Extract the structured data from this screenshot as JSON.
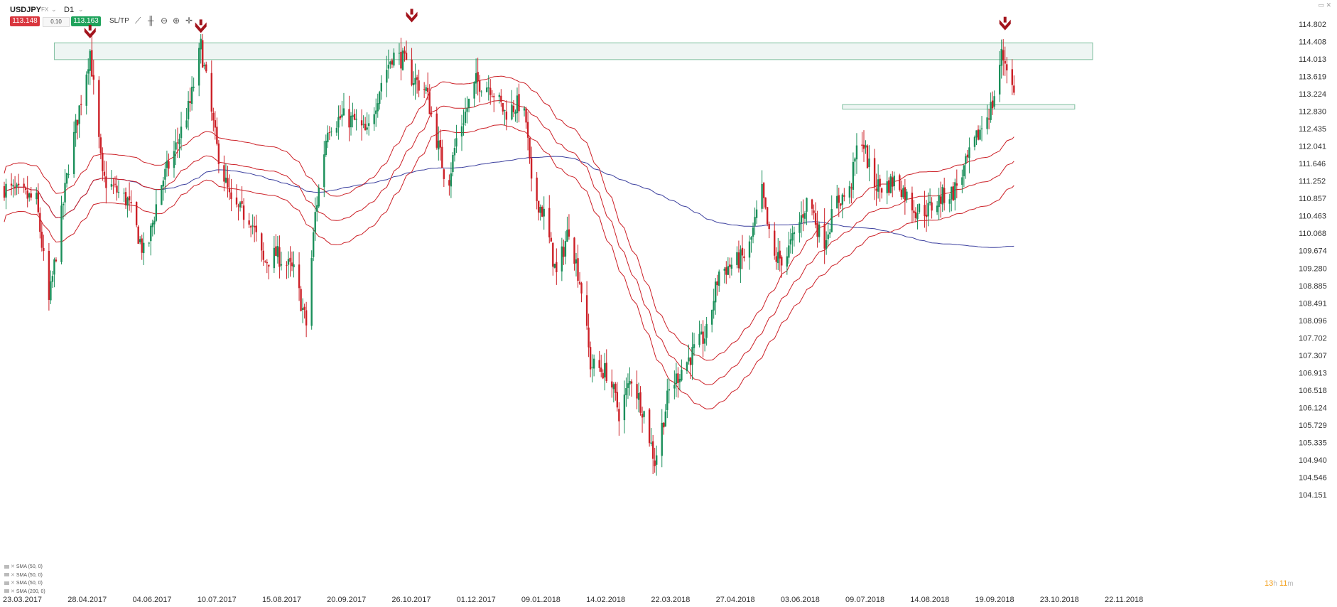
{
  "toolbar": {
    "symbol": "USDJPY",
    "market": "FX",
    "timeframe": "D1",
    "sell_price": "113.148",
    "spread": "0.10",
    "buy_price": "113.163",
    "sltp_label": "SL/TP"
  },
  "indicators": [
    "SMA (50, 0)",
    "SMA (50, 0)",
    "SMA (50, 0)",
    "SMA (200, 0)"
  ],
  "timer": {
    "hours": "13",
    "hours_unit": "h",
    "minutes": "11",
    "minutes_unit": "m"
  },
  "colors": {
    "bull": "#1a8f5a",
    "bear": "#cc2027",
    "sma": "#cc2027",
    "sma200": "#3b3f9e",
    "zone": "#7fbf9f",
    "arrow": "#a3141c"
  },
  "chart_data": {
    "type": "candlestick",
    "title": "",
    "xlabel": "",
    "ylabel": "",
    "y_ticks": [
      "114.802",
      "114.408",
      "114.013",
      "113.619",
      "113.224",
      "112.830",
      "112.435",
      "112.041",
      "111.646",
      "111.252",
      "110.857",
      "110.463",
      "110.068",
      "109.674",
      "109.280",
      "108.885",
      "108.491",
      "108.096",
      "107.702",
      "107.307",
      "106.913",
      "106.518",
      "106.124",
      "105.729",
      "105.335",
      "104.940",
      "104.546",
      "104.151"
    ],
    "ylim": [
      104.151,
      114.802
    ],
    "x_ticks": [
      "23.03.2017",
      "28.04.2017",
      "04.06.2017",
      "10.07.2017",
      "15.08.2017",
      "20.09.2017",
      "26.10.2017",
      "01.12.2017",
      "09.01.2018",
      "14.02.2018",
      "22.03.2018",
      "27.04.2018",
      "03.06.2018",
      "09.07.2018",
      "14.08.2018",
      "19.09.2018",
      "23.10.2018",
      "22.11.2018"
    ],
    "close_path": [
      [
        "2017-03-23",
        111.1
      ],
      [
        "2017-04-10",
        110.8
      ],
      [
        "2017-04-17",
        108.5
      ],
      [
        "2017-04-28",
        111.6
      ],
      [
        "2017-05-10",
        114.2
      ],
      [
        "2017-05-17",
        111.3
      ],
      [
        "2017-05-31",
        110.8
      ],
      [
        "2017-06-10",
        109.5
      ],
      [
        "2017-06-18",
        111.1
      ],
      [
        "2017-06-26",
        111.9
      ],
      [
        "2017-07-05",
        113.0
      ],
      [
        "2017-07-11",
        114.3
      ],
      [
        "2017-07-20",
        112.0
      ],
      [
        "2017-07-28",
        110.7
      ],
      [
        "2017-08-08",
        110.4
      ],
      [
        "2017-08-15",
        109.4
      ],
      [
        "2017-08-22",
        109.6
      ],
      [
        "2017-09-01",
        109.2
      ],
      [
        "2017-09-08",
        108.0
      ],
      [
        "2017-09-13",
        110.5
      ],
      [
        "2017-09-20",
        112.5
      ],
      [
        "2017-09-28",
        112.7
      ],
      [
        "2017-10-05",
        112.6
      ],
      [
        "2017-10-12",
        112.3
      ],
      [
        "2017-10-20",
        113.5
      ],
      [
        "2017-10-26",
        114.1
      ],
      [
        "2017-11-01",
        114.0
      ],
      [
        "2017-11-06",
        113.6
      ],
      [
        "2017-11-14",
        113.3
      ],
      [
        "2017-11-20",
        112.2
      ],
      [
        "2017-11-26",
        111.1
      ],
      [
        "2017-12-01",
        112.2
      ],
      [
        "2017-12-12",
        113.5
      ],
      [
        "2017-12-20",
        113.4
      ],
      [
        "2017-12-28",
        112.8
      ],
      [
        "2018-01-05",
        113.0
      ],
      [
        "2018-01-09",
        112.6
      ],
      [
        "2018-01-12",
        111.1
      ],
      [
        "2018-01-19",
        110.5
      ],
      [
        "2018-01-26",
        109.1
      ],
      [
        "2018-02-02",
        110.2
      ],
      [
        "2018-02-09",
        108.8
      ],
      [
        "2018-02-14",
        107.1
      ],
      [
        "2018-02-24",
        106.9
      ],
      [
        "2018-03-02",
        106.0
      ],
      [
        "2018-03-09",
        106.8
      ],
      [
        "2018-03-16",
        106.0
      ],
      [
        "2018-03-22",
        104.9
      ],
      [
        "2018-03-30",
        106.5
      ],
      [
        "2018-04-06",
        107.0
      ],
      [
        "2018-04-13",
        107.4
      ],
      [
        "2018-04-20",
        107.8
      ],
      [
        "2018-04-27",
        109.2
      ],
      [
        "2018-05-06",
        109.4
      ],
      [
        "2018-05-13",
        109.6
      ],
      [
        "2018-05-21",
        111.0
      ],
      [
        "2018-05-27",
        109.5
      ],
      [
        "2018-06-03",
        109.5
      ],
      [
        "2018-06-10",
        110.2
      ],
      [
        "2018-06-16",
        110.9
      ],
      [
        "2018-06-24",
        109.8
      ],
      [
        "2018-07-02",
        110.8
      ],
      [
        "2018-07-09",
        111.0
      ],
      [
        "2018-07-15",
        112.4
      ],
      [
        "2018-07-22",
        111.2
      ],
      [
        "2018-07-28",
        111.1
      ],
      [
        "2018-08-04",
        111.3
      ],
      [
        "2018-08-10",
        110.9
      ],
      [
        "2018-08-15",
        110.6
      ],
      [
        "2018-08-22",
        110.6
      ],
      [
        "2018-08-30",
        110.9
      ],
      [
        "2018-09-05",
        111.0
      ],
      [
        "2018-09-12",
        111.6
      ],
      [
        "2018-09-20",
        112.4
      ],
      [
        "2018-09-27",
        113.0
      ],
      [
        "2018-10-02",
        114.1
      ],
      [
        "2018-10-05",
        113.9
      ],
      [
        "2018-10-09",
        113.2
      ]
    ],
    "marked_highs": [
      {
        "date": "2017-05-10",
        "price": 114.37
      },
      {
        "date": "2017-07-11",
        "price": 114.49
      },
      {
        "date": "2017-11-06",
        "price": 114.73
      },
      {
        "date": "2018-10-04",
        "price": 114.55
      }
    ],
    "zones": [
      {
        "from": "2017-04-20",
        "to": "2018-11-22",
        "low": 114.0,
        "high": 114.38
      },
      {
        "from": "2018-07-05",
        "to": "2018-11-12",
        "low": 112.88,
        "high": 112.98
      }
    ],
    "sma_envelope_offsets": [
      0.55,
      0,
      -0.55
    ],
    "grid": false,
    "legend": "bottom-left"
  }
}
